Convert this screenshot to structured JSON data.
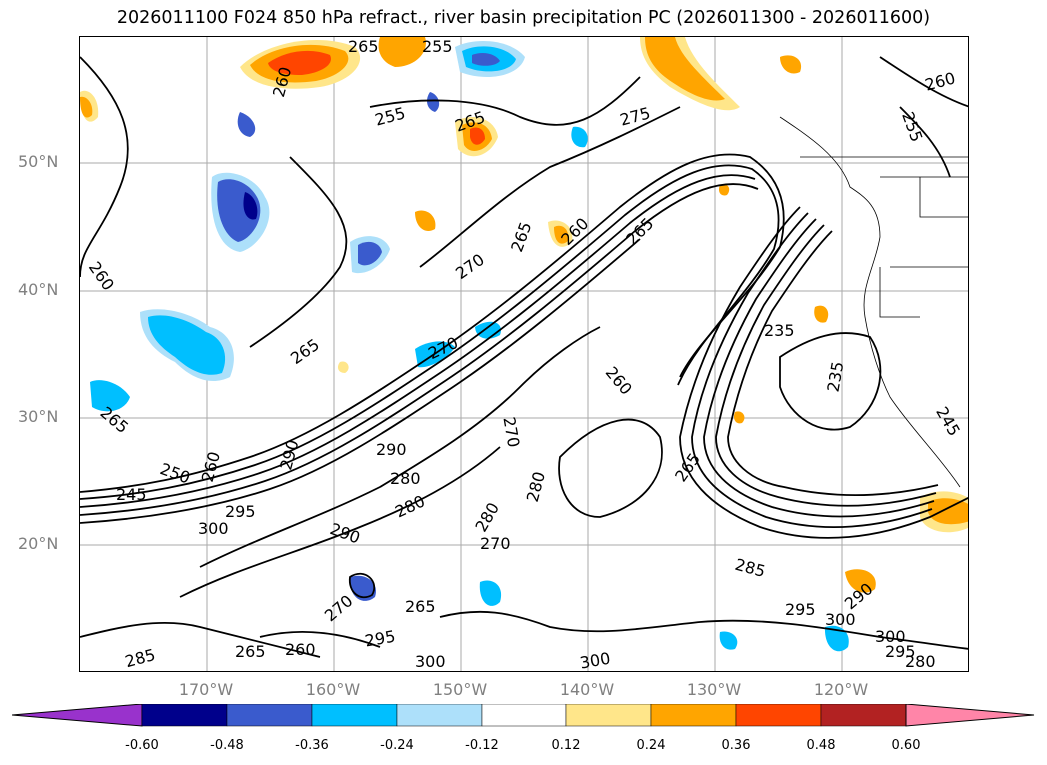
{
  "title": "2026011100 F024 850 hPa refract., river basin precipitation PC (2026011300 - 2026011600)",
  "map": {
    "lat_labels": [
      "50°N",
      "40°N",
      "30°N",
      "20°N"
    ],
    "lon_labels": [
      "170°W",
      "160°W",
      "150°W",
      "140°W",
      "130°W",
      "120°W"
    ],
    "contour_labels": [
      "265",
      "255",
      "260",
      "255",
      "265",
      "275",
      "260",
      "255",
      "260",
      "265",
      "265",
      "270",
      "260",
      "265",
      "270",
      "235",
      "235",
      "245",
      "265",
      "260",
      "250",
      "290",
      "280",
      "260",
      "245",
      "295",
      "300",
      "280",
      "290",
      "280",
      "270",
      "280",
      "270",
      "265",
      "285",
      "295",
      "300",
      "290",
      "300",
      "295",
      "280",
      "265",
      "260",
      "300",
      "285",
      "295",
      "270",
      "265",
      "300",
      "290"
    ]
  },
  "colorbar": {
    "colors": [
      "#9932CC",
      "#00008B",
      "#3A5BCD",
      "#00BFFF",
      "#ADE0FA",
      "#FFFFFF",
      "#FFE68A",
      "#FFA500",
      "#FF4500",
      "#B22222",
      "#FF85A8"
    ],
    "tick_labels": [
      "-0.60",
      "-0.48",
      "-0.36",
      "-0.24",
      "-0.12",
      "0.12",
      "0.24",
      "0.36",
      "0.48",
      "0.60"
    ]
  }
}
